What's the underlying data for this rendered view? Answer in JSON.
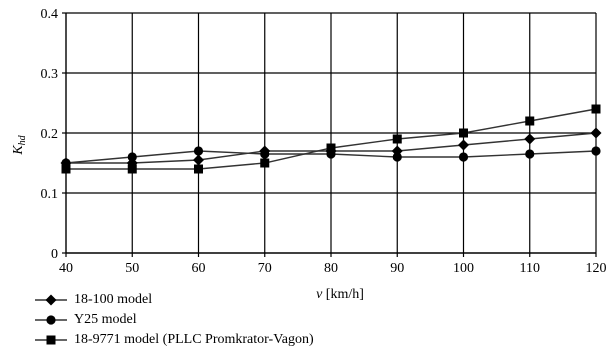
{
  "chart_data": {
    "type": "line",
    "title": "",
    "xlabel": "v [km/h]",
    "xlabel_var": "v",
    "xlabel_unit": " [km/h]",
    "ylabel": "Khd",
    "ylabel_main": "K",
    "ylabel_sub": "hd",
    "x": [
      40,
      50,
      60,
      70,
      80,
      90,
      100,
      110,
      120
    ],
    "xlim": [
      40,
      120
    ],
    "ylim": [
      0,
      0.4
    ],
    "xticks": [
      40,
      50,
      60,
      70,
      80,
      90,
      100,
      110,
      120
    ],
    "yticks": [
      0,
      0.1,
      0.2,
      0.3,
      0.4
    ],
    "ytick_labels": [
      "0",
      "0.1",
      "0.2",
      "0.3",
      "0.4"
    ],
    "grid": true,
    "legend_position": "bottom-left",
    "line_color": "#333333",
    "series": [
      {
        "name": "18-100 model",
        "marker": "diamond",
        "values": [
          0.15,
          0.15,
          0.155,
          0.17,
          0.17,
          0.17,
          0.18,
          0.19,
          0.2
        ]
      },
      {
        "name": "Y25 model",
        "marker": "circle",
        "values": [
          0.15,
          0.16,
          0.17,
          0.165,
          0.165,
          0.16,
          0.16,
          0.165,
          0.17
        ]
      },
      {
        "name": "18-9771 model (PLLC Promkrator-Vagon)",
        "marker": "square",
        "values": [
          0.14,
          0.14,
          0.14,
          0.15,
          0.175,
          0.19,
          0.2,
          0.22,
          0.24
        ]
      }
    ]
  }
}
